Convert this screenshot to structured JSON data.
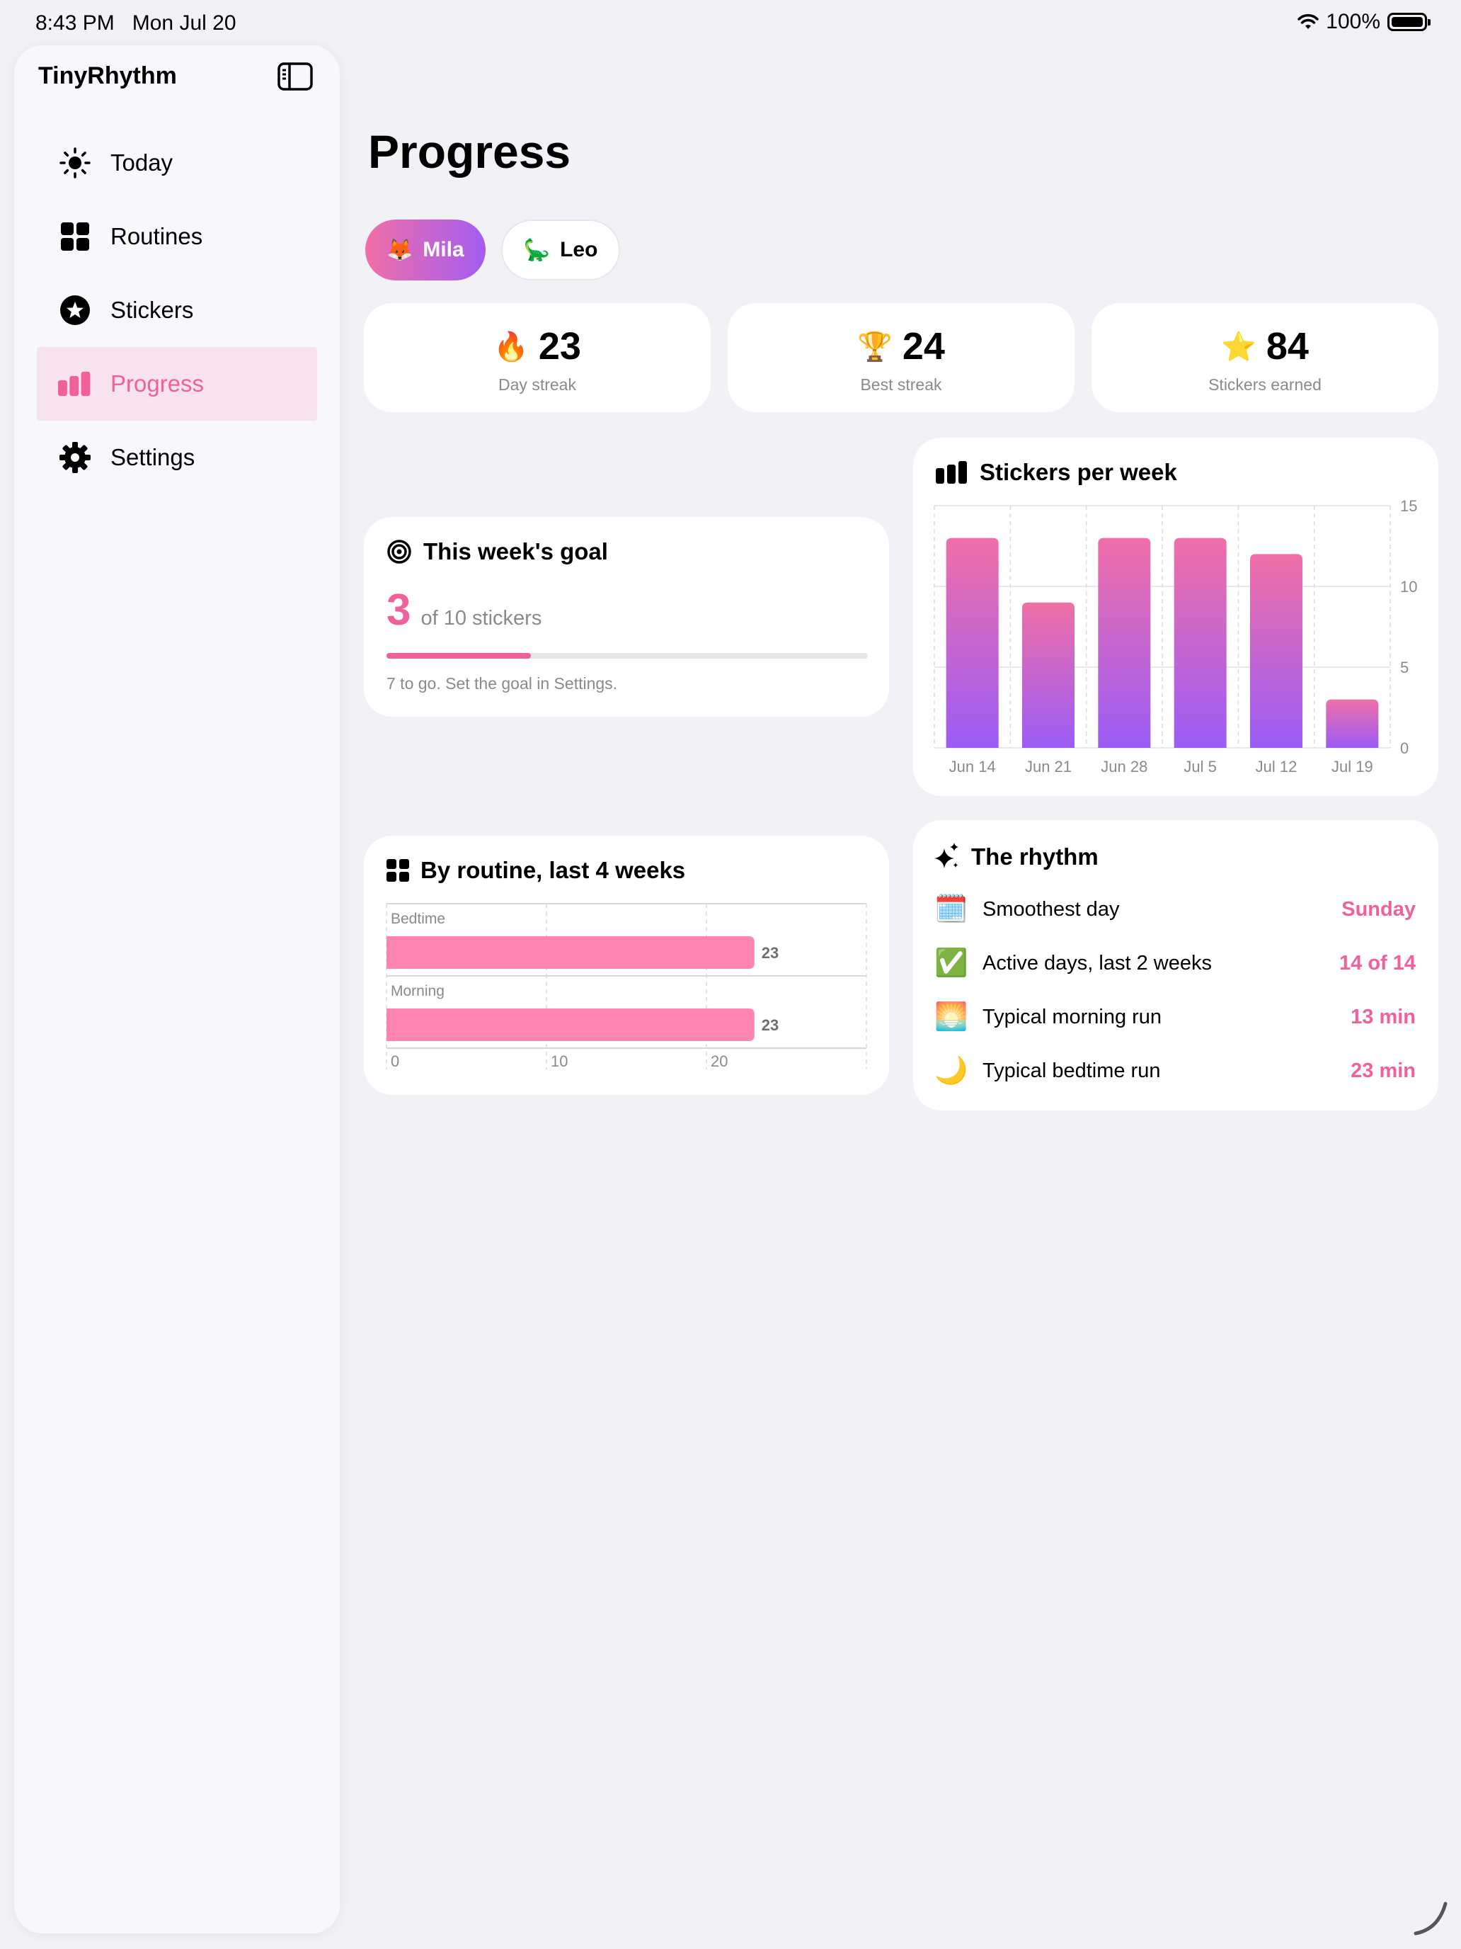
{
  "status": {
    "time": "8:43 PM",
    "date": "Mon Jul 20",
    "battery": "100%"
  },
  "sidebar": {
    "app_title": "TinyRhythm",
    "items": [
      {
        "label": "Today",
        "icon": "sun-icon"
      },
      {
        "label": "Routines",
        "icon": "grid-icon"
      },
      {
        "label": "Stickers",
        "icon": "star-circle-icon"
      },
      {
        "label": "Progress",
        "icon": "bar-chart-icon",
        "active": true
      },
      {
        "label": "Settings",
        "icon": "gear-icon"
      }
    ]
  },
  "main": {
    "title": "Progress",
    "children": [
      {
        "emoji": "🦊",
        "name": "Mila",
        "selected": true
      },
      {
        "emoji": "🦕",
        "name": "Leo",
        "selected": false
      }
    ]
  },
  "stats": [
    {
      "emoji": "🔥",
      "value": "23",
      "label": "Day streak"
    },
    {
      "emoji": "🏆",
      "value": "24",
      "label": "Best streak"
    },
    {
      "emoji": "⭐",
      "value": "84",
      "label": "Stickers earned"
    }
  ],
  "goal": {
    "title": "This week's goal",
    "current": "3",
    "of_text": "of 10 stickers",
    "progress": 0.3,
    "hint": "7 to go. Set the goal in Settings."
  },
  "routine_card": {
    "title": "By routine, last 4 weeks"
  },
  "weekly_card": {
    "title": "Stickers per week"
  },
  "rhythm": {
    "title": "The rhythm",
    "rows": [
      {
        "emoji": "🗓️",
        "label": "Smoothest day",
        "value": "Sunday"
      },
      {
        "emoji": "✅",
        "label": "Active days, last 2 weeks",
        "value": "14 of 14"
      },
      {
        "emoji": "🌅",
        "label": "Typical morning run",
        "value": "13 min"
      },
      {
        "emoji": "🌙",
        "label": "Typical bedtime run",
        "value": "23 min"
      }
    ]
  },
  "colors": {
    "accent": "#f0609a",
    "gradient_top": "#f06fa7",
    "gradient_bottom": "#9b5cf6",
    "routine_bar": "#ff85b0"
  },
  "chart_data": [
    {
      "type": "bar",
      "title": "Stickers per week",
      "categories": [
        "Jun 14",
        "Jun 21",
        "Jun 28",
        "Jul 5",
        "Jul 12",
        "Jul 19"
      ],
      "values": [
        13,
        9,
        13,
        13,
        12,
        3
      ],
      "ylim": [
        0,
        15
      ],
      "yticks": [
        0,
        5,
        10,
        15
      ],
      "grid": true
    },
    {
      "type": "bar",
      "orientation": "horizontal",
      "title": "By routine, last 4 weeks",
      "categories": [
        "Bedtime",
        "Morning"
      ],
      "values": [
        23,
        23
      ],
      "xlim": [
        0,
        30
      ],
      "xticks": [
        0,
        10,
        20
      ],
      "grid": true
    }
  ]
}
